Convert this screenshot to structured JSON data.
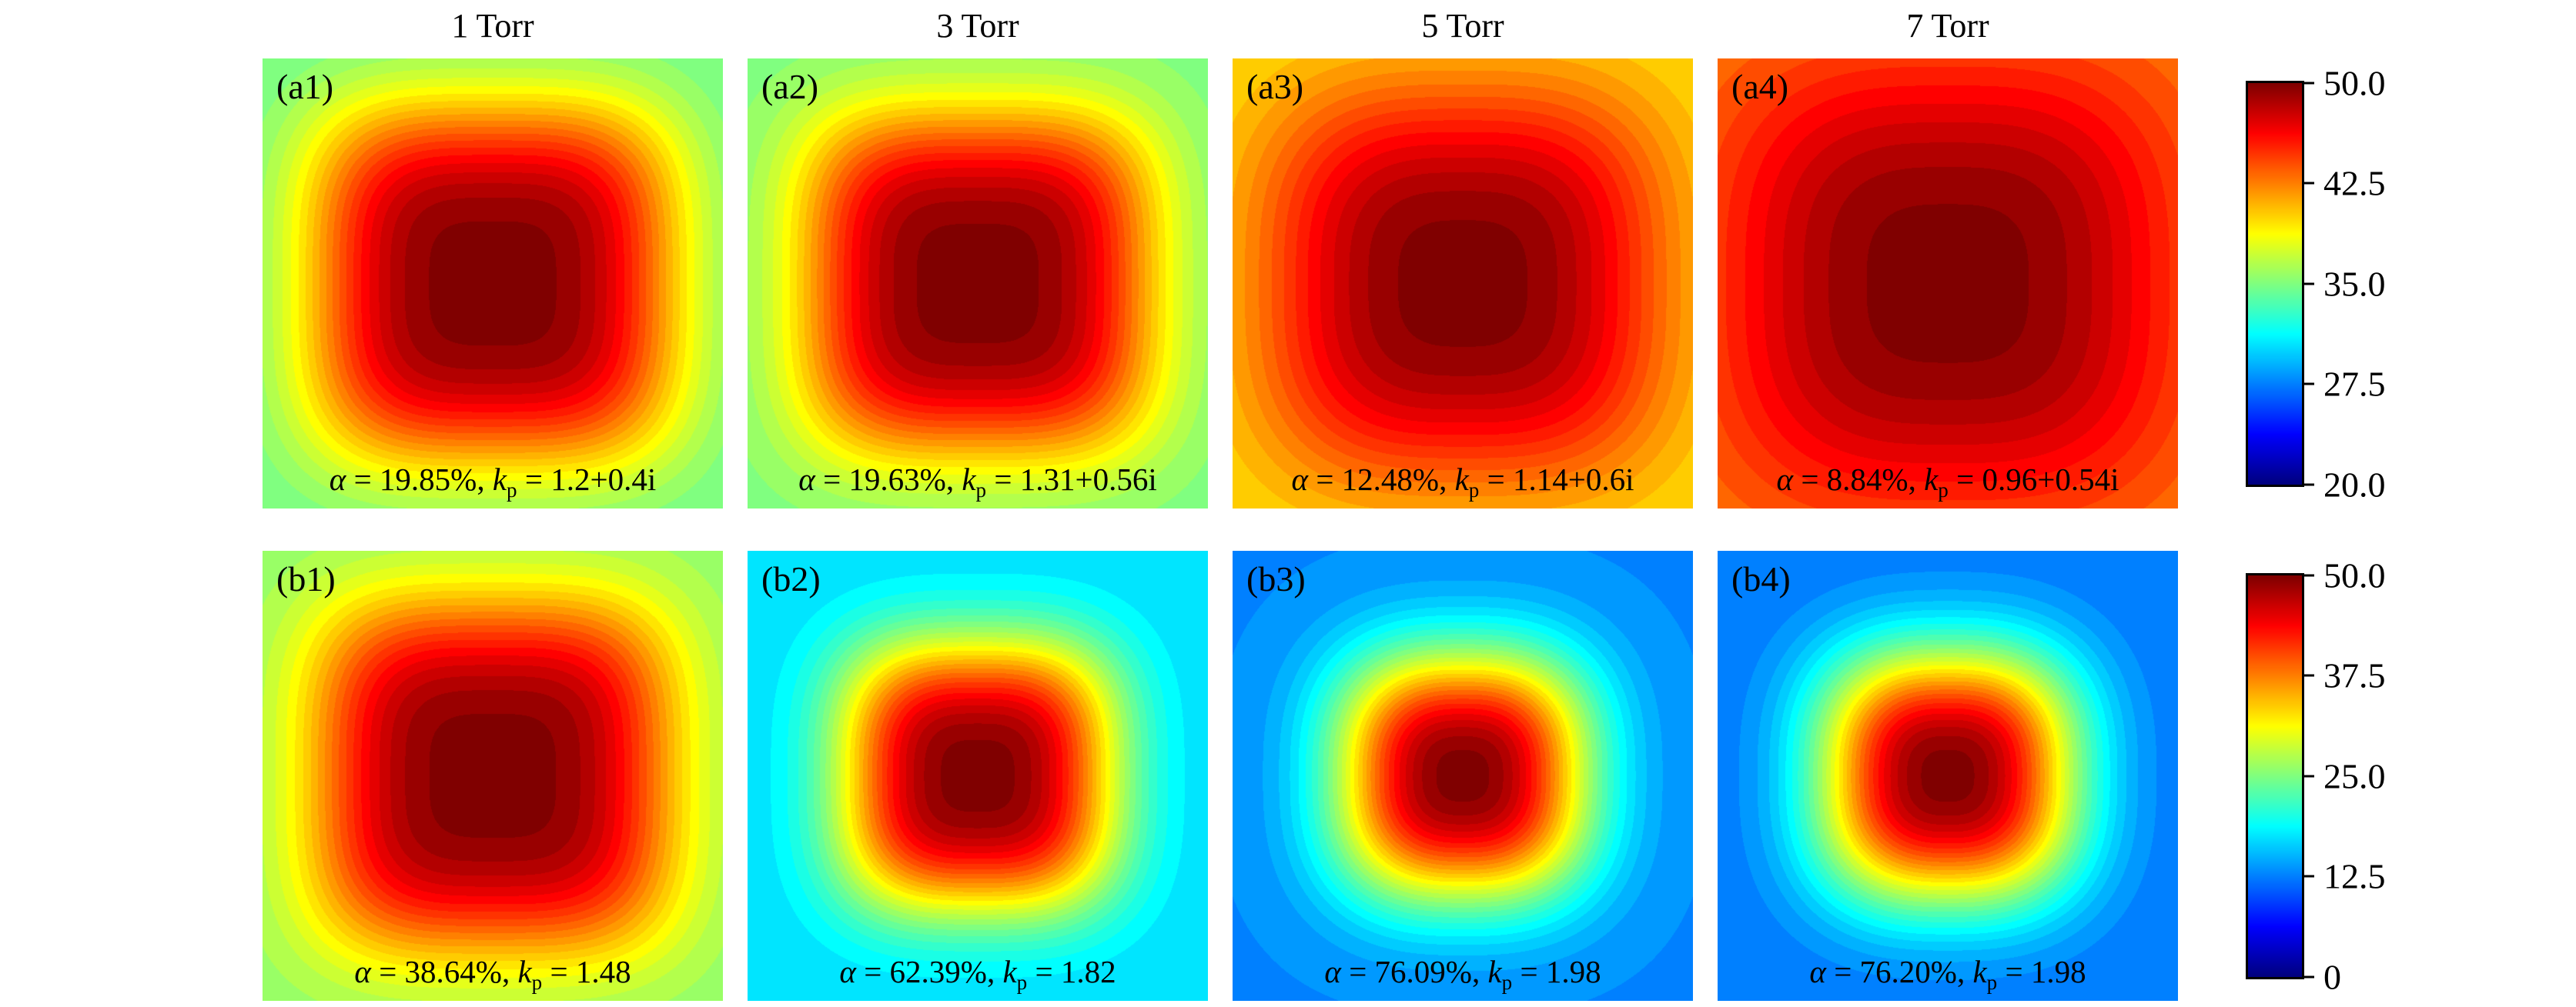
{
  "figure": {
    "background": "#ffffff"
  },
  "column_titles": [
    "1 Torr",
    "3 Torr",
    "5 Torr",
    "7 Torr"
  ],
  "chart_data": {
    "type": "heatmap",
    "colormap": "jet",
    "grid": "2 rows x 4 columns",
    "field_model": "val(u,v) = base + amp * exp(-((|u|^p + |v|^p)/s^p)), u,v in [-1,1], quantized into contour levels",
    "contour_levels": 40,
    "rows": [
      {
        "colorbar": {
          "vmin": 20.0,
          "vmax": 50.0,
          "ticks": [
            "50.0",
            "42.5",
            "35.0",
            "27.5",
            "20.0"
          ]
        },
        "panels": [
          {
            "label": "(a1)",
            "pressure": "1 Torr",
            "alpha_percent": 19.85,
            "kp": "1.2+0.4i",
            "annotation": {
              "alpha": "α",
              "alpha_eq": " = 19.85%, ",
              "k": "k",
              "k_sub": "p",
              "k_eq": " = 1.2+0.4i"
            },
            "field": {
              "base": 34.5,
              "amp": 15.5,
              "s": 0.8,
              "p": 3.5
            }
          },
          {
            "label": "(a2)",
            "pressure": "3 Torr",
            "alpha_percent": 19.63,
            "kp": "1.31+0.56i",
            "annotation": {
              "alpha": "α",
              "alpha_eq": " = 19.63%, ",
              "k": "k",
              "k_sub": "p",
              "k_eq": " = 1.31+0.56i"
            },
            "field": {
              "base": 35.0,
              "amp": 15.0,
              "s": 0.76,
              "p": 3.5
            }
          },
          {
            "label": "(a3)",
            "pressure": "5 Torr",
            "alpha_percent": 12.48,
            "kp": "1.14+0.6i",
            "annotation": {
              "alpha": "α",
              "alpha_eq": " = 12.48%, ",
              "k": "k",
              "k_sub": "p",
              "k_eq": " = 1.14+0.6i"
            },
            "field": {
              "base": 39.5,
              "amp": 10.5,
              "s": 0.85,
              "p": 3.0
            }
          },
          {
            "label": "(a4)",
            "pressure": "7 Torr",
            "alpha_percent": 8.84,
            "kp": "0.96+0.54i",
            "annotation": {
              "alpha": "α",
              "alpha_eq": " = 8.84%, ",
              "k": "k",
              "k_sub": "p",
              "k_eq": " = 0.96+0.54i"
            },
            "field": {
              "base": 42.5,
              "amp": 7.5,
              "s": 0.95,
              "p": 3.0
            }
          }
        ]
      },
      {
        "colorbar": {
          "vmin": 0.0,
          "vmax": 50.0,
          "ticks": [
            "50.0",
            "37.5",
            "25.0",
            "12.5",
            "0"
          ]
        },
        "panels": [
          {
            "label": "(b1)",
            "pressure": "1 Torr",
            "alpha_percent": 38.64,
            "kp": "1.48",
            "annotation": {
              "alpha": "α",
              "alpha_eq": " = 38.64%, ",
              "k": "k",
              "k_sub": "p",
              "k_eq": " = 1.48"
            },
            "field": {
              "base": 26.0,
              "amp": 24.0,
              "s": 0.78,
              "p": 3.5
            }
          },
          {
            "label": "(b2)",
            "pressure": "3 Torr",
            "alpha_percent": 62.39,
            "kp": "1.82",
            "annotation": {
              "alpha": "α",
              "alpha_eq": " = 62.39%, ",
              "k": "k",
              "k_sub": "p",
              "k_eq": " = 1.82"
            },
            "field": {
              "base": 17.0,
              "amp": 33.0,
              "s": 0.6,
              "p": 3.0
            }
          },
          {
            "label": "(b3)",
            "pressure": "5 Torr",
            "alpha_percent": 76.09,
            "kp": "1.98",
            "annotation": {
              "alpha": "α",
              "alpha_eq": " = 76.09%, ",
              "k": "k",
              "k_sub": "p",
              "k_eq": " = 1.98"
            },
            "field": {
              "base": 13.0,
              "amp": 37.0,
              "s": 0.55,
              "p": 2.6
            }
          },
          {
            "label": "(b4)",
            "pressure": "7 Torr",
            "alpha_percent": 76.2,
            "kp": "1.98",
            "annotation": {
              "alpha": "α",
              "alpha_eq": " = 76.20%, ",
              "k": "k",
              "k_sub": "p",
              "k_eq": " = 1.98"
            },
            "field": {
              "base": 12.0,
              "amp": 38.0,
              "s": 0.56,
              "p": 2.6
            }
          }
        ]
      }
    ]
  }
}
